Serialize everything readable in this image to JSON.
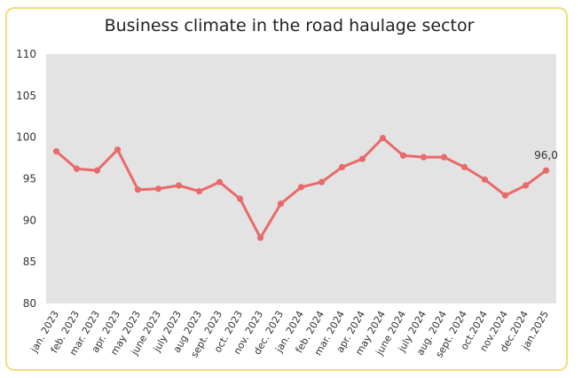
{
  "chart_data": {
    "type": "line",
    "title": "Business climate in the road haulage sector",
    "xlabel": "",
    "ylabel": "",
    "ylim": [
      80,
      110
    ],
    "yticks": [
      80,
      85,
      90,
      95,
      100,
      105,
      110
    ],
    "grid": false,
    "plot_background": "#e3e3e3",
    "line_color": "#e96a6a",
    "categories": [
      "jan. 2023",
      "feb. 2023",
      "mar. 2023",
      "apr. 2023",
      "may 2023",
      "june 2023",
      "july 2023",
      "aug 2023",
      "sept. 2023",
      "oct. 2023",
      "nov. 2023",
      "dec. 2023",
      "jan. 2024",
      "feb. 2024",
      "mar. 2024",
      "apr. 2024",
      "may 2024",
      "june 2024",
      "july 2024",
      "aug. 2024",
      "sept. 2024",
      "oct.2024",
      "nov.2024",
      "dec.2024",
      "jan.2025"
    ],
    "series": [
      {
        "values": [
          98.3,
          96.2,
          96.0,
          98.5,
          93.7,
          93.8,
          94.2,
          93.5,
          94.6,
          92.6,
          87.9,
          92.0,
          94.0,
          94.6,
          96.4,
          97.4,
          99.9,
          97.8,
          97.6,
          97.6,
          96.4,
          94.9,
          93.0,
          94.2,
          96.0
        ]
      }
    ],
    "data_labels": [
      {
        "index": 24,
        "text": "96,0"
      }
    ]
  }
}
